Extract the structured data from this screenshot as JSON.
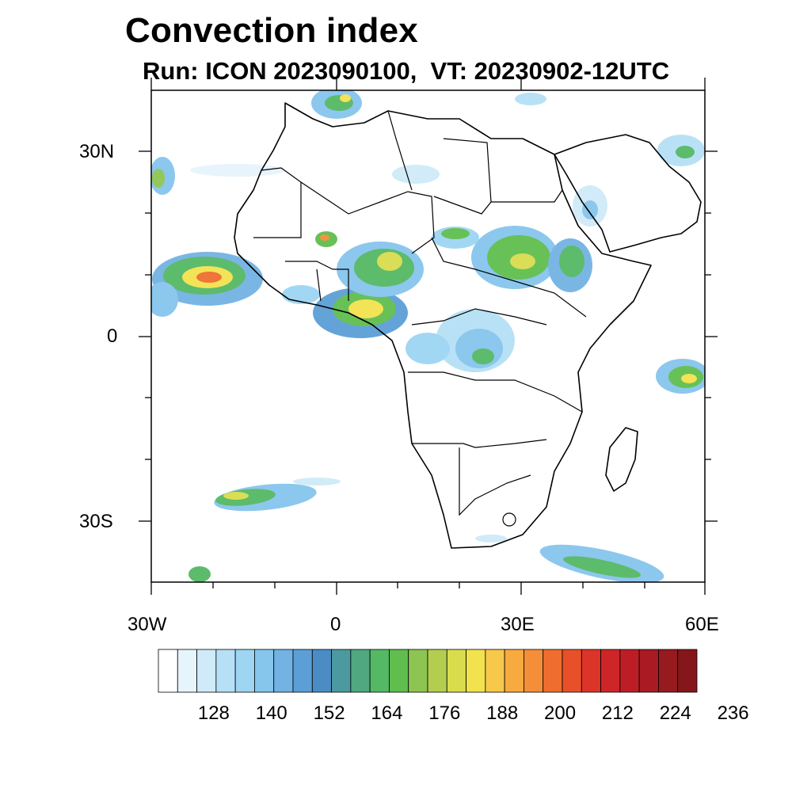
{
  "title": "Convection index",
  "subtitle": "Run: ICON 2023090100,  VT: 20230902-12UTC",
  "map": {
    "lon_range": [
      -30,
      60
    ],
    "lat_range": [
      -40,
      40
    ],
    "y_tick_labels": [
      "30N",
      "0",
      "30S"
    ],
    "x_tick_labels": [
      "30W",
      "0",
      "30E",
      "60E"
    ]
  },
  "colorbar": {
    "labels": [
      "128",
      "140",
      "152",
      "164",
      "176",
      "188",
      "200",
      "212",
      "224",
      "236"
    ],
    "colors": [
      "#ffffff",
      "#e6f4fb",
      "#cfeaf8",
      "#b5e0f6",
      "#9dd5f3",
      "#86c5ec",
      "#73b3e3",
      "#5c9fd6",
      "#4b8cc4",
      "#4a9aa0",
      "#4fa880",
      "#55b865",
      "#5fbe4e",
      "#8ec451",
      "#b3ce4f",
      "#d9dc4d",
      "#f2e24e",
      "#f7c84a",
      "#f7aa40",
      "#f48e38",
      "#ef6e2f",
      "#e85029",
      "#dc3428",
      "#ce2628",
      "#bd1e26",
      "#a91a22",
      "#961a1e",
      "#85161a"
    ]
  }
}
